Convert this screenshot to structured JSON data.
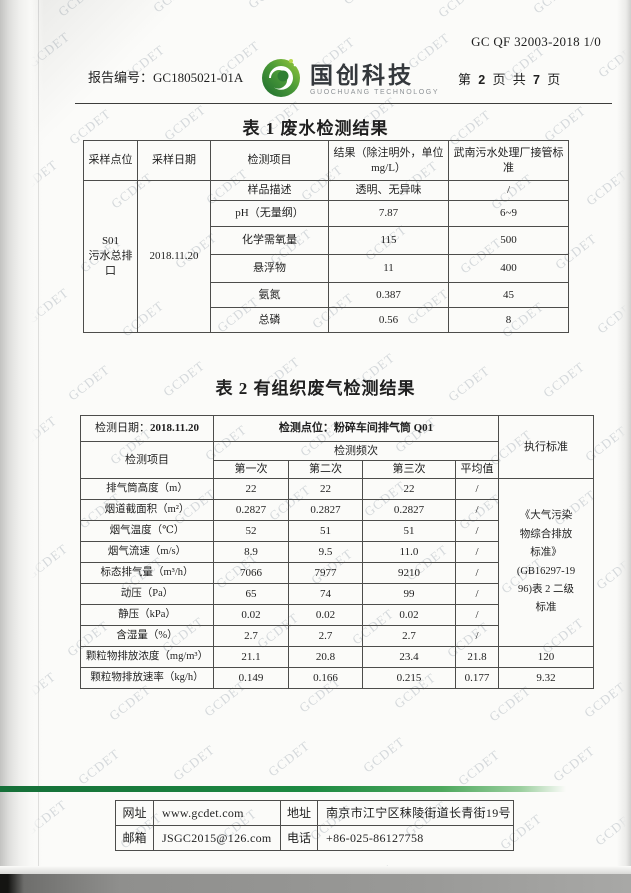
{
  "page": {
    "doc_code": "GC QF 32003-2018 1/0",
    "report_no_label": "报告编号：",
    "report_no": "GC1805021-01A",
    "page_prefix": "第",
    "page_current": "2",
    "page_middle": "页 共",
    "page_total": "7",
    "page_suffix": "页",
    "watermark": "GCDET"
  },
  "logo": {
    "name": "国创科技",
    "subtitle": "GUOCHUANG TECHNOLOGY",
    "icon": "swirl-bird-icon",
    "green_dark": "#1c6b2f",
    "green_light": "#9ccb3c"
  },
  "table1": {
    "title": "表 1  废水检测结果",
    "col_headers": {
      "site": "采样点位",
      "date": "采样日期",
      "item": "检测项目",
      "result_lines": [
        "结果（除注明外，单位",
        "mg/L）"
      ],
      "standard": "武南污水处理厂接管标准"
    },
    "site_lines": [
      "S01",
      "污水总排",
      "口"
    ],
    "date": "2018.11.20",
    "rows": [
      {
        "item": "样品描述",
        "result": "透明、无异味",
        "standard": "/"
      },
      {
        "item": "pH（无量纲）",
        "result": "7.87",
        "standard": "6~9"
      },
      {
        "item": "化学需氧量",
        "result": "115",
        "standard": "500"
      },
      {
        "item": "悬浮物",
        "result": "11",
        "standard": "400"
      },
      {
        "item": "氨氮",
        "result": "0.387",
        "standard": "45"
      },
      {
        "item": "总磷",
        "result": "0.56",
        "standard": "8"
      }
    ]
  },
  "table2": {
    "title": "表 2 有组织废气检测结果",
    "date_label": "检测日期：",
    "date": "2018.11.20",
    "point_label": "检测点位：",
    "point": "粉碎车间排气筒 Q01",
    "standard_header": "执行标准",
    "item_header": "检测项目",
    "freq_header": "检测频次",
    "freq_cols": [
      "第一次",
      "第二次",
      "第三次",
      "平均值"
    ],
    "standard_lines": [
      "《大气污染",
      "物综合排放",
      "标准》",
      "(GB16297-19",
      "96)表 2 二级",
      "标准"
    ],
    "rows": [
      {
        "item": "排气筒高度（m）",
        "v": [
          "22",
          "22",
          "22",
          "/"
        ]
      },
      {
        "item": "烟道截面积（m²）",
        "v": [
          "0.2827",
          "0.2827",
          "0.2827",
          "/"
        ]
      },
      {
        "item": "烟气温度（℃）",
        "v": [
          "52",
          "51",
          "51",
          "/"
        ]
      },
      {
        "item": "烟气流速（m/s）",
        "v": [
          "8.9",
          "9.5",
          "11.0",
          "/"
        ]
      },
      {
        "item": "标态排气量（m³/h）",
        "v": [
          "7066",
          "7977",
          "9210",
          "/"
        ]
      },
      {
        "item": "动压（Pa）",
        "v": [
          "65",
          "74",
          "99",
          "/"
        ]
      },
      {
        "item": "静压（kPa）",
        "v": [
          "0.02",
          "0.02",
          "0.02",
          "/"
        ]
      },
      {
        "item": "含湿量（%）",
        "v": [
          "2.7",
          "2.7",
          "2.7",
          "/"
        ]
      },
      {
        "item": "颗粒物排放浓度（mg/m³）",
        "v": [
          "21.1",
          "20.8",
          "23.4",
          "21.8"
        ],
        "standard": "120"
      },
      {
        "item": "颗粒物排放速率（kg/h）",
        "v": [
          "0.149",
          "0.166",
          "0.215",
          "0.177"
        ],
        "standard": "9.32"
      }
    ]
  },
  "footer": {
    "website_label": "网址",
    "website": "www.gcdet.com",
    "address_label": "地址",
    "address": "南京市江宁区秣陵街道长青街19号",
    "email_label": "邮箱",
    "email": "JSGC2015@126.com",
    "phone_label": "电话",
    "phone": "+86-025-86127758"
  }
}
